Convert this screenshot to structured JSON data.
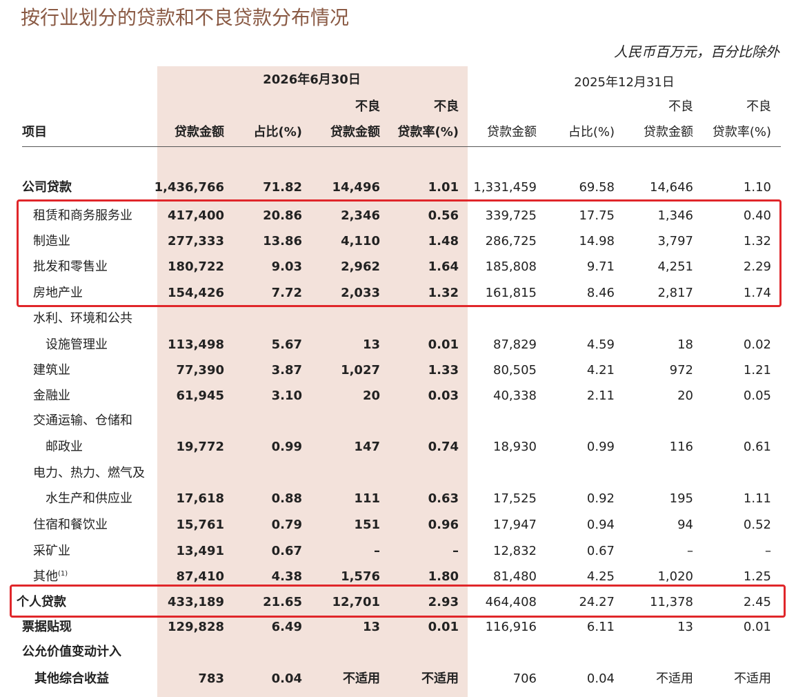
{
  "header": {
    "title": "按行业划分的贷款和不良贷款分布情况",
    "unit": "人民币百万元，百分比除外"
  },
  "table": {
    "item_header": "项目",
    "periods": [
      "2026年6月30日",
      "2025年12月31日"
    ],
    "columns": [
      {
        "label": "贷款金额"
      },
      {
        "label": "占比(%)"
      },
      {
        "top": "不良",
        "label": "贷款金额"
      },
      {
        "top": "不良",
        "label": "贷款率(%)"
      },
      {
        "label": "贷款金额"
      },
      {
        "label": "占比(%)"
      },
      {
        "top": "不良",
        "label": "贷款金额"
      },
      {
        "top": "不良",
        "label": "贷款率(%)"
      }
    ],
    "rows": [
      {
        "label": "公司贷款",
        "cells": [
          "1,436,766",
          "71.82",
          "14,496",
          "1.01",
          "1,331,459",
          "69.58",
          "14,646",
          "1.10"
        ]
      },
      {
        "label": "租赁和商务服务业",
        "cells": [
          "417,400",
          "20.86",
          "2,346",
          "0.56",
          "339,725",
          "17.75",
          "1,346",
          "0.40"
        ]
      },
      {
        "label": "制造业",
        "cells": [
          "277,333",
          "13.86",
          "4,110",
          "1.48",
          "286,725",
          "14.98",
          "3,797",
          "1.32"
        ]
      },
      {
        "label": "批发和零售业",
        "cells": [
          "180,722",
          "9.03",
          "2,962",
          "1.64",
          "185,808",
          "9.71",
          "4,251",
          "2.29"
        ]
      },
      {
        "label": "房地产业",
        "cells": [
          "154,426",
          "7.72",
          "2,033",
          "1.32",
          "161,815",
          "8.46",
          "2,817",
          "1.74"
        ]
      },
      {
        "label": "水利、环境和公共"
      },
      {
        "label": "设施管理业",
        "cells": [
          "113,498",
          "5.67",
          "13",
          "0.01",
          "87,829",
          "4.59",
          "18",
          "0.02"
        ]
      },
      {
        "label": "建筑业",
        "cells": [
          "77,390",
          "3.87",
          "1,027",
          "1.33",
          "80,505",
          "4.21",
          "972",
          "1.21"
        ]
      },
      {
        "label": "金融业",
        "cells": [
          "61,945",
          "3.10",
          "20",
          "0.03",
          "40,338",
          "2.11",
          "20",
          "0.05"
        ]
      },
      {
        "label": "交通运输、仓储和"
      },
      {
        "label": "邮政业",
        "cells": [
          "19,772",
          "0.99",
          "147",
          "0.74",
          "18,930",
          "0.99",
          "116",
          "0.61"
        ]
      },
      {
        "label": "电力、热力、燃气及"
      },
      {
        "label": "水生产和供应业",
        "cells": [
          "17,618",
          "0.88",
          "111",
          "0.63",
          "17,525",
          "0.92",
          "195",
          "1.11"
        ]
      },
      {
        "label": "住宿和餐饮业",
        "cells": [
          "15,761",
          "0.79",
          "151",
          "0.96",
          "17,947",
          "0.94",
          "94",
          "0.52"
        ]
      },
      {
        "label": "采矿业",
        "cells": [
          "13,491",
          "0.67",
          "–",
          "–",
          "12,832",
          "0.67",
          "–",
          "–"
        ]
      },
      {
        "label": "其他",
        "note": "(1)",
        "cells": [
          "87,410",
          "4.38",
          "1,576",
          "1.80",
          "81,480",
          "4.25",
          "1,020",
          "1.25"
        ]
      },
      {
        "label": "个人贷款",
        "cells": [
          "433,189",
          "21.65",
          "12,701",
          "2.93",
          "464,408",
          "24.27",
          "11,378",
          "2.45"
        ]
      },
      {
        "label": "票据贴现",
        "cells": [
          "129,828",
          "6.49",
          "13",
          "0.01",
          "116,916",
          "6.11",
          "13",
          "0.01"
        ]
      },
      {
        "label": "公允价值变动计入"
      },
      {
        "label": "其他综合收益",
        "cells": [
          "783",
          "0.04",
          "不适用",
          "不适用",
          "706",
          "0.04",
          "不适用",
          "不适用"
        ]
      }
    ]
  }
}
